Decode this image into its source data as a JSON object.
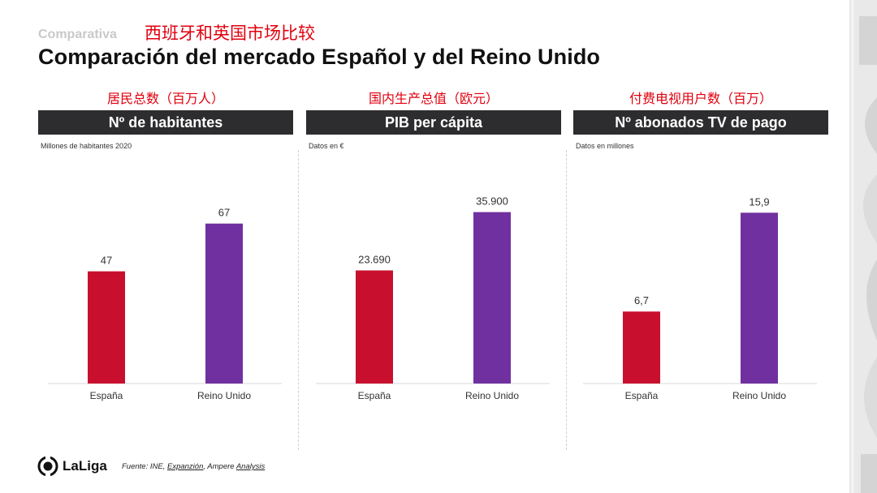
{
  "header": {
    "eyebrow": "Comparativa",
    "cn_title": "西班牙和英国市场比较",
    "title": "Comparación del mercado Español y del Reino Unido"
  },
  "colors": {
    "espana": "#c8102e",
    "reino_unido": "#7030a0",
    "header_bg": "#2d2d2f"
  },
  "chart_data": [
    {
      "type": "bar",
      "cn_label": "居民总数（百万人）",
      "title": "Nº de habitantes",
      "note": "Millones de habitantes 2020",
      "categories": [
        "España",
        "Reino Unido"
      ],
      "values": [
        47,
        67
      ],
      "value_labels": [
        "47",
        "67"
      ],
      "ylim": [
        0,
        90
      ]
    },
    {
      "type": "bar",
      "cn_label": "国内生产总值（欧元）",
      "title": "PIB per cápita",
      "note": "Datos en €",
      "categories": [
        "España",
        "Reino Unido"
      ],
      "values": [
        23690,
        35900
      ],
      "value_labels": [
        "23.690",
        "35.900"
      ],
      "ylim": [
        0,
        45000
      ]
    },
    {
      "type": "bar",
      "cn_label": "付费电视用户数（百万）",
      "title": "Nº abonados TV de pago",
      "note": "Datos en millones",
      "categories": [
        "España",
        "Reino Unido"
      ],
      "values": [
        6.7,
        15.9
      ],
      "value_labels": [
        "6,7",
        "15,9"
      ],
      "ylim": [
        0,
        20
      ]
    }
  ],
  "footer": {
    "brand": "LaLiga",
    "source_prefix": "Fuente: INE, ",
    "source_link1": "Expanzión",
    "source_mid": ", Ampere ",
    "source_link2": "Analysis"
  },
  "icons": {
    "logo": "laliga-logo-icon",
    "decoration": "side-stripes-decoration"
  }
}
